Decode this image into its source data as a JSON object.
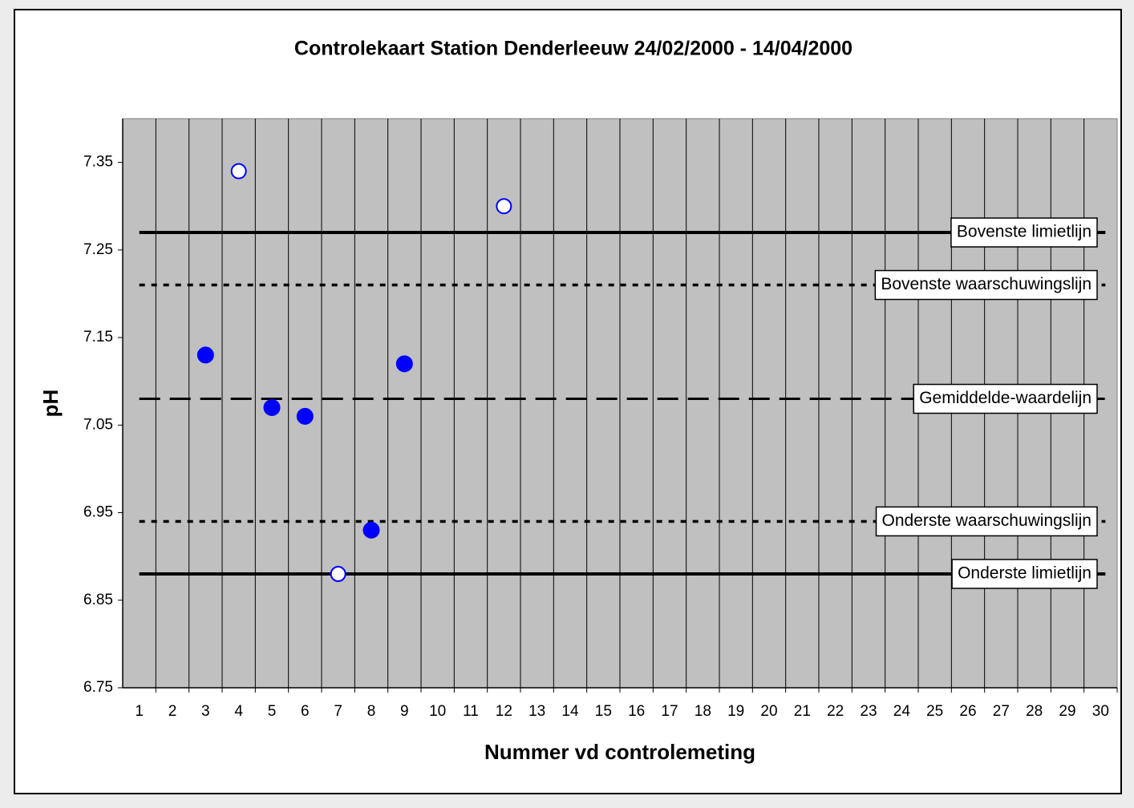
{
  "chart_data": {
    "type": "control",
    "title": "Controlekaart Station Denderleeuw 24/02/2000 - 14/04/2000",
    "x_label": "Nummer vd controlemeting",
    "y_label": "pH",
    "categories": [
      1,
      2,
      3,
      4,
      5,
      6,
      7,
      8,
      9,
      10,
      11,
      12,
      13,
      14,
      15,
      16,
      17,
      18,
      19,
      20,
      21,
      22,
      23,
      24,
      25,
      26,
      27,
      28,
      29,
      30
    ],
    "ylim": [
      6.75,
      7.4
    ],
    "yticks": [
      {
        "value": 6.75,
        "label": "6.75"
      },
      {
        "value": 6.85,
        "label": "6.85"
      },
      {
        "value": 6.95,
        "label": "6.95"
      },
      {
        "value": 7.05,
        "label": "7.05"
      },
      {
        "value": 7.15,
        "label": "7.15"
      },
      {
        "value": 7.25,
        "label": "7.25"
      },
      {
        "value": 7.35,
        "label": "7.35"
      }
    ],
    "series": [
      {
        "color": "#0000ff",
        "marker": "filled",
        "values": [
          null,
          null,
          7.13,
          null,
          7.07,
          7.06,
          null,
          6.93,
          7.12,
          null,
          null,
          null,
          null,
          null,
          null,
          null,
          null,
          null,
          null,
          null,
          null,
          null,
          null,
          null,
          null,
          null,
          null,
          null,
          null,
          null
        ]
      },
      {
        "color": "#0000ff",
        "marker": "open",
        "values": [
          null,
          null,
          null,
          7.34,
          null,
          null,
          6.88,
          null,
          null,
          null,
          null,
          7.3,
          null,
          null,
          null,
          null,
          null,
          null,
          null,
          null,
          null,
          null,
          null,
          null,
          null,
          null,
          null,
          null,
          null,
          null
        ]
      }
    ],
    "lines": [
      {
        "label": "Bovenste limietlijn",
        "value": 7.27,
        "style": "solid"
      },
      {
        "label": "Bovenste waarschuwingslijn",
        "value": 7.21,
        "style": "dotted"
      },
      {
        "label": "Gemiddelde-waardelijn",
        "value": 7.08,
        "style": "dashed"
      },
      {
        "label": "Onderste waarschuwingslijn",
        "value": 6.94,
        "style": "dotted"
      },
      {
        "label": "Onderste limietlijn",
        "value": 6.88,
        "style": "solid"
      }
    ],
    "background": "#c0c0c0"
  }
}
